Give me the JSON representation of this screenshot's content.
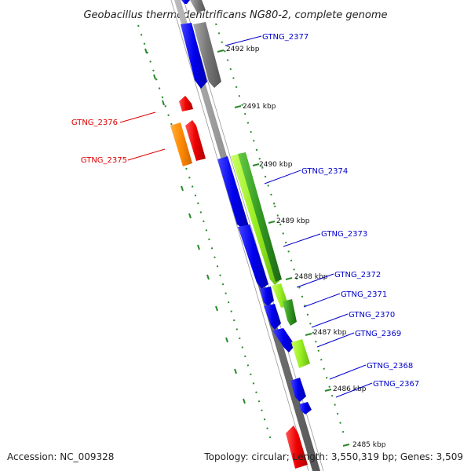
{
  "title": "Geobacillus thermodenitrificans NG80-2, complete genome",
  "footer": {
    "accession": "Accession: NC_009328",
    "topology": "Topology: circular; Length: 3,550,319 bp; Genes: 3,509"
  },
  "colors": {
    "forward_label": "#0000cc",
    "reverse_label": "#dd0000",
    "backbone": "#808080",
    "tick": "#2a8a2a",
    "gene_blue": "#0000ee",
    "gene_gray": "#777777",
    "gene_red": "#ee0000",
    "gene_orange": "#ff8800",
    "gene_lightgreen": "#99ee22",
    "gene_darkgreen": "#339922"
  },
  "kbp_ticks": [
    "2492 kbp",
    "2491 kbp",
    "2490 kbp",
    "2489 kbp",
    "2488 kbp",
    "2487 kbp",
    "2486 kbp",
    "2485 kbp"
  ],
  "gene_labels": {
    "forward": [
      "GTNG_2377",
      "GTNG_2374",
      "GTNG_2373",
      "GTNG_2372",
      "GTNG_2371",
      "GTNG_2370",
      "GTNG_2369",
      "GTNG_2368",
      "GTNG_2367"
    ],
    "reverse": [
      "GTNG_2376",
      "GTNG_2375"
    ]
  }
}
